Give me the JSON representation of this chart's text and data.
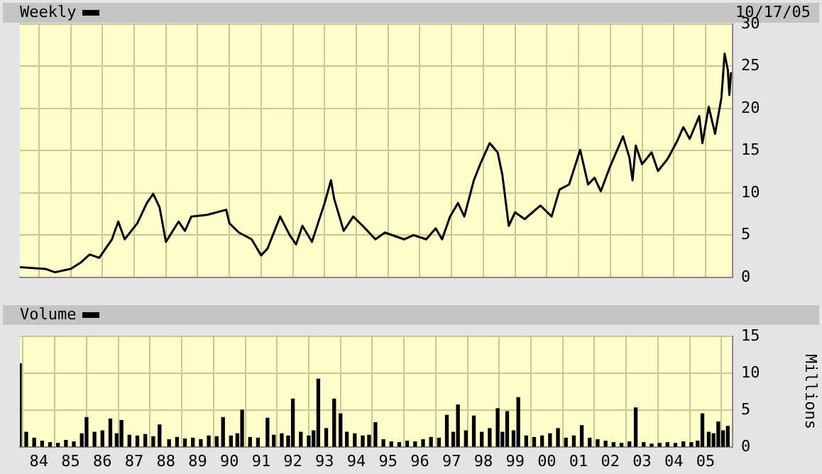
{
  "chart_data": [
    {
      "type": "line",
      "legend": "top left",
      "grid": true,
      "tick_labels": "y",
      "annotations": [
        "10/17/05"
      ],
      "xlim": [
        1983.4,
        2005.85
      ],
      "ylim": [
        0,
        30
      ],
      "yticks": [
        0,
        5,
        10,
        15,
        20,
        25,
        30
      ],
      "xticks": [
        {
          "value": 1984,
          "label": null
        },
        {
          "value": 1985,
          "label": null
        },
        {
          "value": 1986,
          "label": null
        },
        {
          "value": 1987,
          "label": null
        },
        {
          "value": 1988,
          "label": null
        },
        {
          "value": 1989,
          "label": null
        },
        {
          "value": 1990,
          "label": null
        },
        {
          "value": 1991,
          "label": null
        },
        {
          "value": 1992,
          "label": null
        },
        {
          "value": 1993,
          "label": null
        },
        {
          "value": 1994,
          "label": null
        },
        {
          "value": 1995,
          "label": null
        },
        {
          "value": 1996,
          "label": null
        },
        {
          "value": 1997,
          "label": null
        },
        {
          "value": 1998,
          "label": null
        },
        {
          "value": 1999,
          "label": null
        },
        {
          "value": 2000,
          "label": null
        },
        {
          "value": 2001,
          "label": null
        },
        {
          "value": 2002,
          "label": null
        },
        {
          "value": 2003,
          "label": null
        },
        {
          "value": 2004,
          "label": null
        },
        {
          "value": 2005,
          "label": null
        }
      ],
      "x": [
        1983.4,
        1984.2,
        1984.5,
        1985.0,
        1985.3,
        1985.6,
        1985.9,
        1986.3,
        1986.5,
        1986.7,
        1987.1,
        1987.4,
        1987.6,
        1987.8,
        1988.0,
        1988.4,
        1988.6,
        1988.8,
        1989.3,
        1989.9,
        1990.0,
        1990.3,
        1990.7,
        1991.0,
        1991.2,
        1991.6,
        1991.9,
        1992.1,
        1992.3,
        1992.6,
        1993.0,
        1993.2,
        1993.3,
        1993.6,
        1993.9,
        1994.2,
        1994.6,
        1994.9,
        1995.5,
        1995.8,
        1996.2,
        1996.5,
        1996.7,
        1996.95,
        1997.2,
        1997.4,
        1997.7,
        1997.9,
        1998.2,
        1998.45,
        1998.6,
        1998.8,
        1999.0,
        1999.3,
        1999.8,
        2000.15,
        2000.4,
        2000.7,
        2001.05,
        2001.3,
        2001.5,
        2001.7,
        2002.0,
        2002.4,
        2002.6,
        2002.7,
        2002.8,
        2003.0,
        2003.3,
        2003.5,
        2003.8,
        2004.1,
        2004.3,
        2004.5,
        2004.8,
        2004.9,
        2005.1,
        2005.3,
        2005.5,
        2005.6,
        2005.7,
        2005.75,
        2005.8
      ],
      "series": [
        {
          "name": "Weekly",
          "color": "#000000",
          "values": [
            1.2,
            1.0,
            0.6,
            1.0,
            1.7,
            2.7,
            2.3,
            4.5,
            6.6,
            4.5,
            6.4,
            8.8,
            9.9,
            8.3,
            4.2,
            6.6,
            5.5,
            7.2,
            7.4,
            8.0,
            6.4,
            5.3,
            4.5,
            2.6,
            3.4,
            7.2,
            5.0,
            3.9,
            6.1,
            4.2,
            8.8,
            11.5,
            9.3,
            5.5,
            7.2,
            6.1,
            4.5,
            5.3,
            4.5,
            5.0,
            4.5,
            5.8,
            4.5,
            7.2,
            8.8,
            7.2,
            11.5,
            13.4,
            15.9,
            14.8,
            12.1,
            6.1,
            7.7,
            6.9,
            8.5,
            7.2,
            10.4,
            11.0,
            15.1,
            11.0,
            11.8,
            10.2,
            13.2,
            16.7,
            14.2,
            11.5,
            15.6,
            13.4,
            14.8,
            12.6,
            14.0,
            16.1,
            17.8,
            16.4,
            19.1,
            15.9,
            20.2,
            17.0,
            21.3,
            26.5,
            24.6,
            21.6,
            24.3
          ]
        }
      ]
    },
    {
      "type": "bar",
      "legend": "top left",
      "grid": true,
      "ylabel": "Millions",
      "xlim": [
        1983.4,
        2005.85
      ],
      "ylim": [
        0,
        15
      ],
      "yticks": [
        0,
        5,
        10,
        15
      ],
      "xticks": [
        {
          "value": 1984,
          "label": "84"
        },
        {
          "value": 1985,
          "label": "85"
        },
        {
          "value": 1986,
          "label": "86"
        },
        {
          "value": 1987,
          "label": "87"
        },
        {
          "value": 1988,
          "label": "88"
        },
        {
          "value": 1989,
          "label": "89"
        },
        {
          "value": 1990,
          "label": "90"
        },
        {
          "value": 1991,
          "label": "91"
        },
        {
          "value": 1992,
          "label": "92"
        },
        {
          "value": 1993,
          "label": "93"
        },
        {
          "value": 1994,
          "label": "94"
        },
        {
          "value": 1995,
          "label": "95"
        },
        {
          "value": 1996,
          "label": "96"
        },
        {
          "value": 1997,
          "label": "97"
        },
        {
          "value": 1998,
          "label": "98"
        },
        {
          "value": 1999,
          "label": "99"
        },
        {
          "value": 2000,
          "label": "00"
        },
        {
          "value": 2001,
          "label": "01"
        },
        {
          "value": 2002,
          "label": "02"
        },
        {
          "value": 2003,
          "label": "03"
        },
        {
          "value": 2004,
          "label": "04"
        },
        {
          "value": 2005,
          "label": "05"
        }
      ],
      "x": [
        1983.4,
        1983.6,
        1983.85,
        1984.1,
        1984.35,
        1984.6,
        1984.85,
        1985.1,
        1985.35,
        1985.5,
        1985.75,
        1986.0,
        1986.25,
        1986.45,
        1986.6,
        1986.85,
        1987.1,
        1987.35,
        1987.6,
        1987.8,
        1988.1,
        1988.35,
        1988.6,
        1988.85,
        1989.1,
        1989.35,
        1989.6,
        1989.8,
        1990.05,
        1990.25,
        1990.4,
        1990.65,
        1990.9,
        1991.2,
        1991.4,
        1991.65,
        1991.85,
        1992.0,
        1992.25,
        1992.5,
        1992.65,
        1992.8,
        1993.05,
        1993.3,
        1993.5,
        1993.7,
        1993.95,
        1994.2,
        1994.4,
        1994.6,
        1994.85,
        1995.1,
        1995.35,
        1995.6,
        1995.85,
        1996.1,
        1996.35,
        1996.6,
        1996.85,
        1997.05,
        1997.2,
        1997.45,
        1997.7,
        1997.95,
        1998.2,
        1998.45,
        1998.6,
        1998.75,
        1998.95,
        1999.1,
        1999.35,
        1999.6,
        1999.85,
        2000.1,
        2000.35,
        2000.6,
        2000.85,
        2001.1,
        2001.35,
        2001.6,
        2001.85,
        2002.1,
        2002.35,
        2002.6,
        2002.8,
        2003.05,
        2003.3,
        2003.55,
        2003.8,
        2004.05,
        2004.3,
        2004.55,
        2004.75,
        2004.9,
        2005.1,
        2005.25,
        2005.4,
        2005.55,
        2005.7
      ],
      "series": [
        {
          "name": "Volume",
          "color": "#000000",
          "values": [
            11.3,
            2.0,
            1.2,
            0.8,
            0.6,
            0.5,
            0.9,
            0.7,
            1.8,
            4.0,
            2.0,
            2.2,
            3.8,
            1.8,
            3.6,
            1.6,
            1.5,
            1.7,
            1.4,
            3.0,
            1.0,
            1.3,
            1.1,
            1.2,
            1.0,
            1.5,
            1.4,
            4.0,
            1.5,
            1.8,
            5.0,
            1.3,
            1.2,
            3.9,
            1.6,
            1.8,
            1.5,
            6.5,
            2.0,
            1.5,
            2.2,
            9.2,
            2.5,
            6.5,
            4.5,
            2.0,
            1.8,
            1.5,
            1.6,
            3.3,
            1.0,
            0.7,
            0.6,
            0.8,
            0.7,
            1.0,
            1.3,
            1.2,
            4.3,
            2.0,
            5.7,
            2.2,
            4.2,
            2.0,
            2.5,
            5.2,
            2.0,
            4.8,
            2.2,
            6.7,
            1.5,
            1.3,
            1.5,
            1.8,
            2.5,
            1.2,
            1.5,
            2.9,
            1.2,
            1.0,
            0.8,
            0.6,
            0.5,
            0.7,
            5.3,
            0.6,
            0.4,
            0.5,
            0.6,
            0.5,
            0.7,
            0.6,
            0.8,
            4.5,
            2.0,
            1.8,
            3.4,
            2.2,
            2.8
          ]
        }
      ]
    }
  ]
}
